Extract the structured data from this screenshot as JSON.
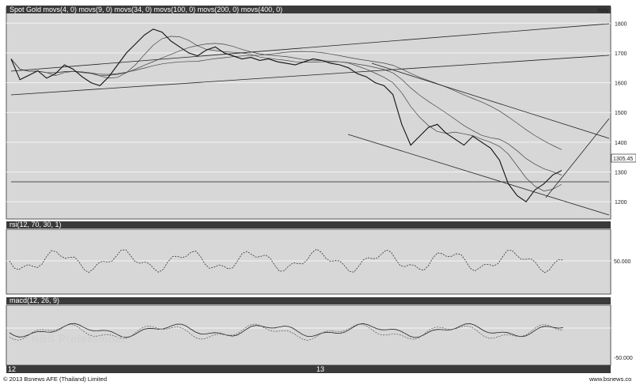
{
  "colors": {
    "panel_bg": "#d7d7d7",
    "header_bg": "#3a3a3a",
    "line": "#111111",
    "grid": "#f4f4f4"
  },
  "price_panel": {
    "title": "Spot Gold movs(4, 0) movs(9, 0) movs(34, 0) movs(100, 0) movs(200, 0) movs(400, 0)",
    "period": "daily",
    "y_ticks": [
      "1800",
      "1700",
      "1600",
      "1500",
      "1400",
      "1300",
      "1200"
    ],
    "last_price": "1305.45"
  },
  "rsi_panel": {
    "title": "rsi(12, 70, 30, 1)",
    "y_ticks": [
      "50.000"
    ]
  },
  "macd_panel": {
    "title": "macd(12, 26, 9)",
    "y_ticks": [
      "-50.000"
    ]
  },
  "x_axis": {
    "year_labels": [
      "12",
      "13"
    ]
  },
  "watermark": "NBS Professional",
  "footer": {
    "copyright": "© 2013 Bsnews AFE (Thailand) Limited",
    "site": "www.bsnews.co"
  },
  "chart_data": {
    "type": "line",
    "title": "Spot Gold",
    "y_range": [
      1150,
      1830
    ],
    "series": [
      {
        "values": [
          1680,
          1610,
          1625,
          1640,
          1615,
          1630,
          1660,
          1645,
          1620,
          1600,
          1590,
          1620,
          1660,
          1700,
          1730,
          1760,
          1780,
          1770,
          1740,
          1720,
          1700,
          1690,
          1710,
          1720,
          1700,
          1690,
          1680,
          1685,
          1675,
          1680,
          1670,
          1665,
          1660,
          1670,
          1680,
          1675,
          1665,
          1660,
          1650,
          1630,
          1620,
          1600,
          1590,
          1560,
          1460,
          1390,
          1420,
          1450,
          1460,
          1430,
          1410,
          1390,
          1420,
          1400,
          1380,
          1340,
          1260,
          1220,
          1200,
          1240,
          1260,
          1290,
          1305
        ]
      }
    ]
  }
}
